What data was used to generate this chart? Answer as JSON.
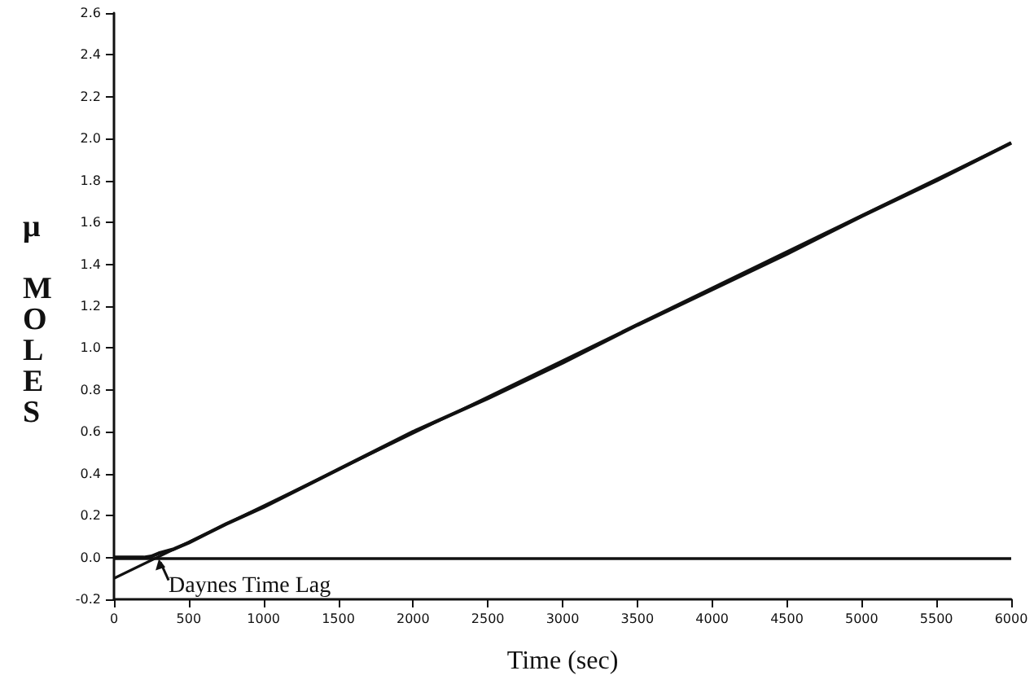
{
  "chart_data": {
    "type": "line",
    "xlabel": "Time (sec)",
    "ylabel": "μ MOLES",
    "series": [
      {
        "color": "#111111",
        "x": [
          0,
          50,
          100,
          150,
          200,
          250,
          300,
          400,
          500,
          750,
          1000,
          1500,
          2000,
          2500,
          3000,
          3500,
          4000,
          4500,
          5000,
          5500,
          6000
        ],
        "values": [
          0,
          0,
          0,
          0,
          0,
          0.005,
          0.02,
          0.04,
          0.07,
          0.16,
          0.24,
          0.42,
          0.6,
          0.76,
          0.93,
          1.11,
          1.28,
          1.45,
          1.63,
          1.8,
          1.98
        ]
      },
      {
        "color": "#111111",
        "x": [
          0,
          6000
        ],
        "values": [
          -0.1,
          1.98
        ]
      }
    ],
    "xlim": [
      0,
      6000
    ],
    "xticks": [
      0,
      500,
      1000,
      1500,
      2000,
      2500,
      3000,
      3500,
      4000,
      4500,
      5000,
      5500,
      6000
    ],
    "ylim": [
      -0.2,
      2.6
    ],
    "yticks": [
      -0.2,
      {
        "value": 0,
        "label": "0.0"
      },
      0.2,
      0.4,
      0.6,
      0.8,
      {
        "value": 1,
        "label": "1.0"
      },
      1.2,
      1.4,
      1.6,
      1.8,
      {
        "value": 2,
        "label": "2.0"
      },
      2.2,
      2.4,
      2.6
    ],
    "ref_lines": [
      {
        "axis": "y",
        "value": 0,
        "color": "#111111"
      }
    ],
    "annotations": [
      {
        "text": "Daynes Time Lag",
        "x": 300,
        "y": 0
      }
    ],
    "grid": false,
    "marker": "none",
    "line_style": "solid"
  }
}
